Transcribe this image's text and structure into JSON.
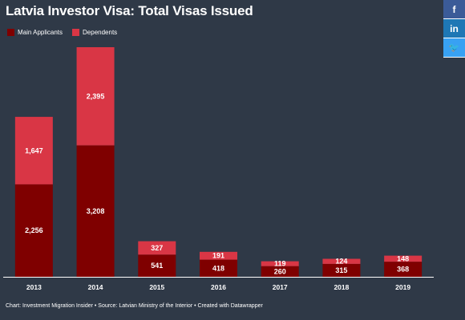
{
  "title": "Latvia Investor Visa: Total Visas Issued",
  "legend": [
    {
      "label": "Main Applicants",
      "color": "#7f0000"
    },
    {
      "label": "Dependents",
      "color": "#d93645"
    }
  ],
  "footer": "Chart: Investment Migration Insider • Source: Latvian Ministry of the Interior • Created with Datawrapper",
  "share": [
    {
      "icon": "facebook-icon",
      "glyph": "f"
    },
    {
      "icon": "linkedin-icon",
      "glyph": "in"
    },
    {
      "icon": "twitter-icon",
      "glyph": "🐦"
    }
  ],
  "chart_data": {
    "type": "bar",
    "stacked": true,
    "categories": [
      "2013",
      "2014",
      "2015",
      "2016",
      "2017",
      "2018",
      "2019"
    ],
    "series": [
      {
        "name": "Main Applicants",
        "color": "#7f0000",
        "values": [
          2256,
          3208,
          541,
          418,
          260,
          315,
          368
        ],
        "labels": [
          "2,256",
          "3,208",
          "541",
          "418",
          "260",
          "315",
          "368"
        ]
      },
      {
        "name": "Dependents",
        "color": "#d93645",
        "values": [
          1647,
          2395,
          327,
          191,
          119,
          124,
          148
        ],
        "labels": [
          "1,647",
          "2,395",
          "327",
          "191",
          "119",
          "124",
          "148"
        ]
      }
    ],
    "ylim": [
      0,
      5603
    ],
    "grid": false,
    "legend_position": "top-left"
  }
}
